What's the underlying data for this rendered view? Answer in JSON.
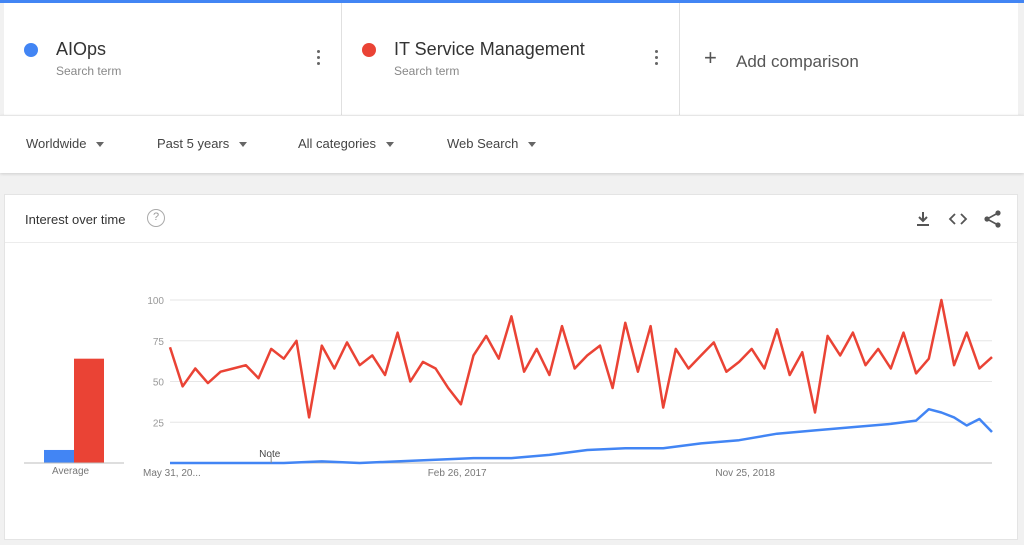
{
  "terms": [
    {
      "name": "AIOps",
      "sub": "Search term",
      "color": "#4285f4"
    },
    {
      "name": "IT Service Management",
      "sub": "Search term",
      "color": "#ea4335"
    }
  ],
  "add_comparison": "Add comparison",
  "filters": {
    "region": "Worldwide",
    "period": "Past 5 years",
    "category": "All categories",
    "search_type": "Web Search"
  },
  "card": {
    "title": "Interest over time",
    "help": "?",
    "icons": [
      "download-icon",
      "embed-icon",
      "share-icon"
    ]
  },
  "chart_data": {
    "type": "line",
    "title": "",
    "xlabel": "",
    "ylabel": "",
    "ylim": [
      0,
      100
    ],
    "yticks": [
      25,
      50,
      75,
      100
    ],
    "grid": true,
    "x_range": [
      "2015-05-31",
      "2020-05-24"
    ],
    "xtick_labels": [
      {
        "date": "2015-05-31",
        "label": "May 31, 20..."
      },
      {
        "date": "2017-02-26",
        "label": "Feb 26, 2017"
      },
      {
        "date": "2018-11-25",
        "label": "Nov 25, 2018"
      }
    ],
    "annotation": {
      "date": "2016-01-10",
      "text": "Note"
    },
    "series": [
      {
        "name": "IT Service Management",
        "color": "#ea4335",
        "points": [
          [
            "2015-05-31",
            71
          ],
          [
            "2015-06-28",
            47
          ],
          [
            "2015-07-26",
            58
          ],
          [
            "2015-08-23",
            49
          ],
          [
            "2015-09-20",
            56
          ],
          [
            "2015-10-18",
            58
          ],
          [
            "2015-11-15",
            60
          ],
          [
            "2015-12-13",
            52
          ],
          [
            "2016-01-10",
            70
          ],
          [
            "2016-02-07",
            64
          ],
          [
            "2016-03-06",
            75
          ],
          [
            "2016-04-03",
            28
          ],
          [
            "2016-05-01",
            72
          ],
          [
            "2016-05-29",
            58
          ],
          [
            "2016-06-26",
            74
          ],
          [
            "2016-07-24",
            60
          ],
          [
            "2016-08-21",
            66
          ],
          [
            "2016-09-18",
            54
          ],
          [
            "2016-10-16",
            80
          ],
          [
            "2016-11-13",
            50
          ],
          [
            "2016-12-11",
            62
          ],
          [
            "2017-01-08",
            58
          ],
          [
            "2017-02-05",
            46
          ],
          [
            "2017-03-05",
            36
          ],
          [
            "2017-04-02",
            66
          ],
          [
            "2017-04-30",
            78
          ],
          [
            "2017-05-28",
            64
          ],
          [
            "2017-06-25",
            90
          ],
          [
            "2017-07-23",
            56
          ],
          [
            "2017-08-20",
            70
          ],
          [
            "2017-09-17",
            54
          ],
          [
            "2017-10-15",
            84
          ],
          [
            "2017-11-12",
            58
          ],
          [
            "2017-12-10",
            66
          ],
          [
            "2018-01-07",
            72
          ],
          [
            "2018-02-04",
            46
          ],
          [
            "2018-03-04",
            86
          ],
          [
            "2018-04-01",
            56
          ],
          [
            "2018-04-29",
            84
          ],
          [
            "2018-05-27",
            34
          ],
          [
            "2018-06-24",
            70
          ],
          [
            "2018-07-22",
            58
          ],
          [
            "2018-08-19",
            66
          ],
          [
            "2018-09-16",
            74
          ],
          [
            "2018-10-14",
            56
          ],
          [
            "2018-11-11",
            62
          ],
          [
            "2018-12-09",
            70
          ],
          [
            "2019-01-06",
            58
          ],
          [
            "2019-02-03",
            82
          ],
          [
            "2019-03-03",
            54
          ],
          [
            "2019-03-31",
            68
          ],
          [
            "2019-04-28",
            31
          ],
          [
            "2019-05-26",
            78
          ],
          [
            "2019-06-23",
            66
          ],
          [
            "2019-07-21",
            80
          ],
          [
            "2019-08-18",
            60
          ],
          [
            "2019-09-15",
            70
          ],
          [
            "2019-10-13",
            58
          ],
          [
            "2019-11-10",
            80
          ],
          [
            "2019-12-08",
            55
          ],
          [
            "2020-01-05",
            64
          ],
          [
            "2020-02-02",
            100
          ],
          [
            "2020-03-01",
            60
          ],
          [
            "2020-03-29",
            80
          ],
          [
            "2020-04-26",
            58
          ],
          [
            "2020-05-24",
            65
          ]
        ]
      },
      {
        "name": "AIOps",
        "color": "#4285f4",
        "points": [
          [
            "2015-05-31",
            0
          ],
          [
            "2015-08-23",
            0
          ],
          [
            "2015-11-15",
            0
          ],
          [
            "2016-02-07",
            0
          ],
          [
            "2016-05-01",
            1
          ],
          [
            "2016-07-24",
            0
          ],
          [
            "2016-10-16",
            1
          ],
          [
            "2017-01-08",
            2
          ],
          [
            "2017-04-02",
            3
          ],
          [
            "2017-06-25",
            3
          ],
          [
            "2017-09-17",
            5
          ],
          [
            "2017-12-10",
            8
          ],
          [
            "2018-03-04",
            9
          ],
          [
            "2018-05-27",
            9
          ],
          [
            "2018-08-19",
            12
          ],
          [
            "2018-11-11",
            14
          ],
          [
            "2019-02-03",
            18
          ],
          [
            "2019-04-28",
            20
          ],
          [
            "2019-07-21",
            22
          ],
          [
            "2019-10-13",
            24
          ],
          [
            "2019-12-08",
            26
          ],
          [
            "2020-01-05",
            33
          ],
          [
            "2020-02-02",
            31
          ],
          [
            "2020-03-01",
            28
          ],
          [
            "2020-03-29",
            23
          ],
          [
            "2020-04-26",
            27
          ],
          [
            "2020-05-24",
            19
          ]
        ]
      }
    ],
    "averages": {
      "label": "Average",
      "values": [
        {
          "name": "AIOps",
          "value": 8,
          "color": "#4285f4"
        },
        {
          "name": "IT Service Management",
          "value": 64,
          "color": "#ea4335"
        }
      ]
    }
  }
}
